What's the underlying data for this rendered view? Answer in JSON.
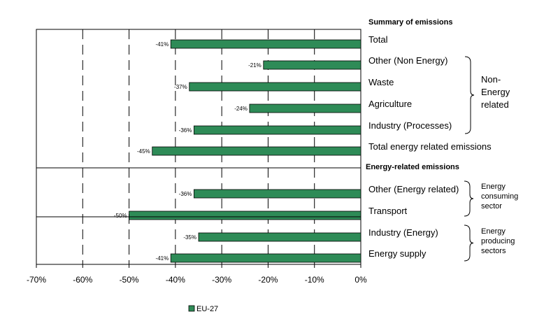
{
  "chart_data": {
    "type": "bar",
    "orientation": "horizontal",
    "xlim": [
      -0.7,
      0
    ],
    "x_ticks": [
      "-70%",
      "-60%",
      "-50%",
      "-40%",
      "-30%",
      "-20%",
      "-10%",
      "0%"
    ],
    "grid": "vertical dashed",
    "legend_position": "bottom-center",
    "series": [
      {
        "name": "EU-27",
        "color": "#2e8b57"
      }
    ],
    "categories": [
      "Total",
      "Other (Non Energy)",
      "Waste",
      "Agriculture",
      "Industry (Processes)",
      "Total energy related emissions",
      "Other (Energy related)",
      "Transport",
      "Industry (Energy)",
      "Energy supply"
    ],
    "values": [
      -0.41,
      -0.21,
      -0.37,
      -0.24,
      -0.36,
      -0.45,
      -0.36,
      -0.5,
      -0.35,
      -0.41
    ],
    "value_labels": [
      "-41%",
      "-21%",
      "-37%",
      "-24%",
      "-36%",
      "-45%",
      "-36%",
      "-50%",
      "-35%",
      "-41%"
    ],
    "section_headers": [
      "Summary of emissions",
      "Energy-related emissions"
    ],
    "groups": [
      {
        "label_lines": [
          "Non-",
          "Energy",
          "related"
        ],
        "categories": [
          "Other (Non Energy)",
          "Waste",
          "Agriculture",
          "Industry (Processes)"
        ]
      },
      {
        "label_lines": [
          "Energy",
          "consuming",
          "sector"
        ],
        "categories": [
          "Other (Energy related)",
          "Transport"
        ]
      },
      {
        "label_lines": [
          "Energy",
          "producing",
          "sectors"
        ],
        "categories": [
          "Industry (Energy)",
          "Energy supply"
        ]
      }
    ]
  }
}
